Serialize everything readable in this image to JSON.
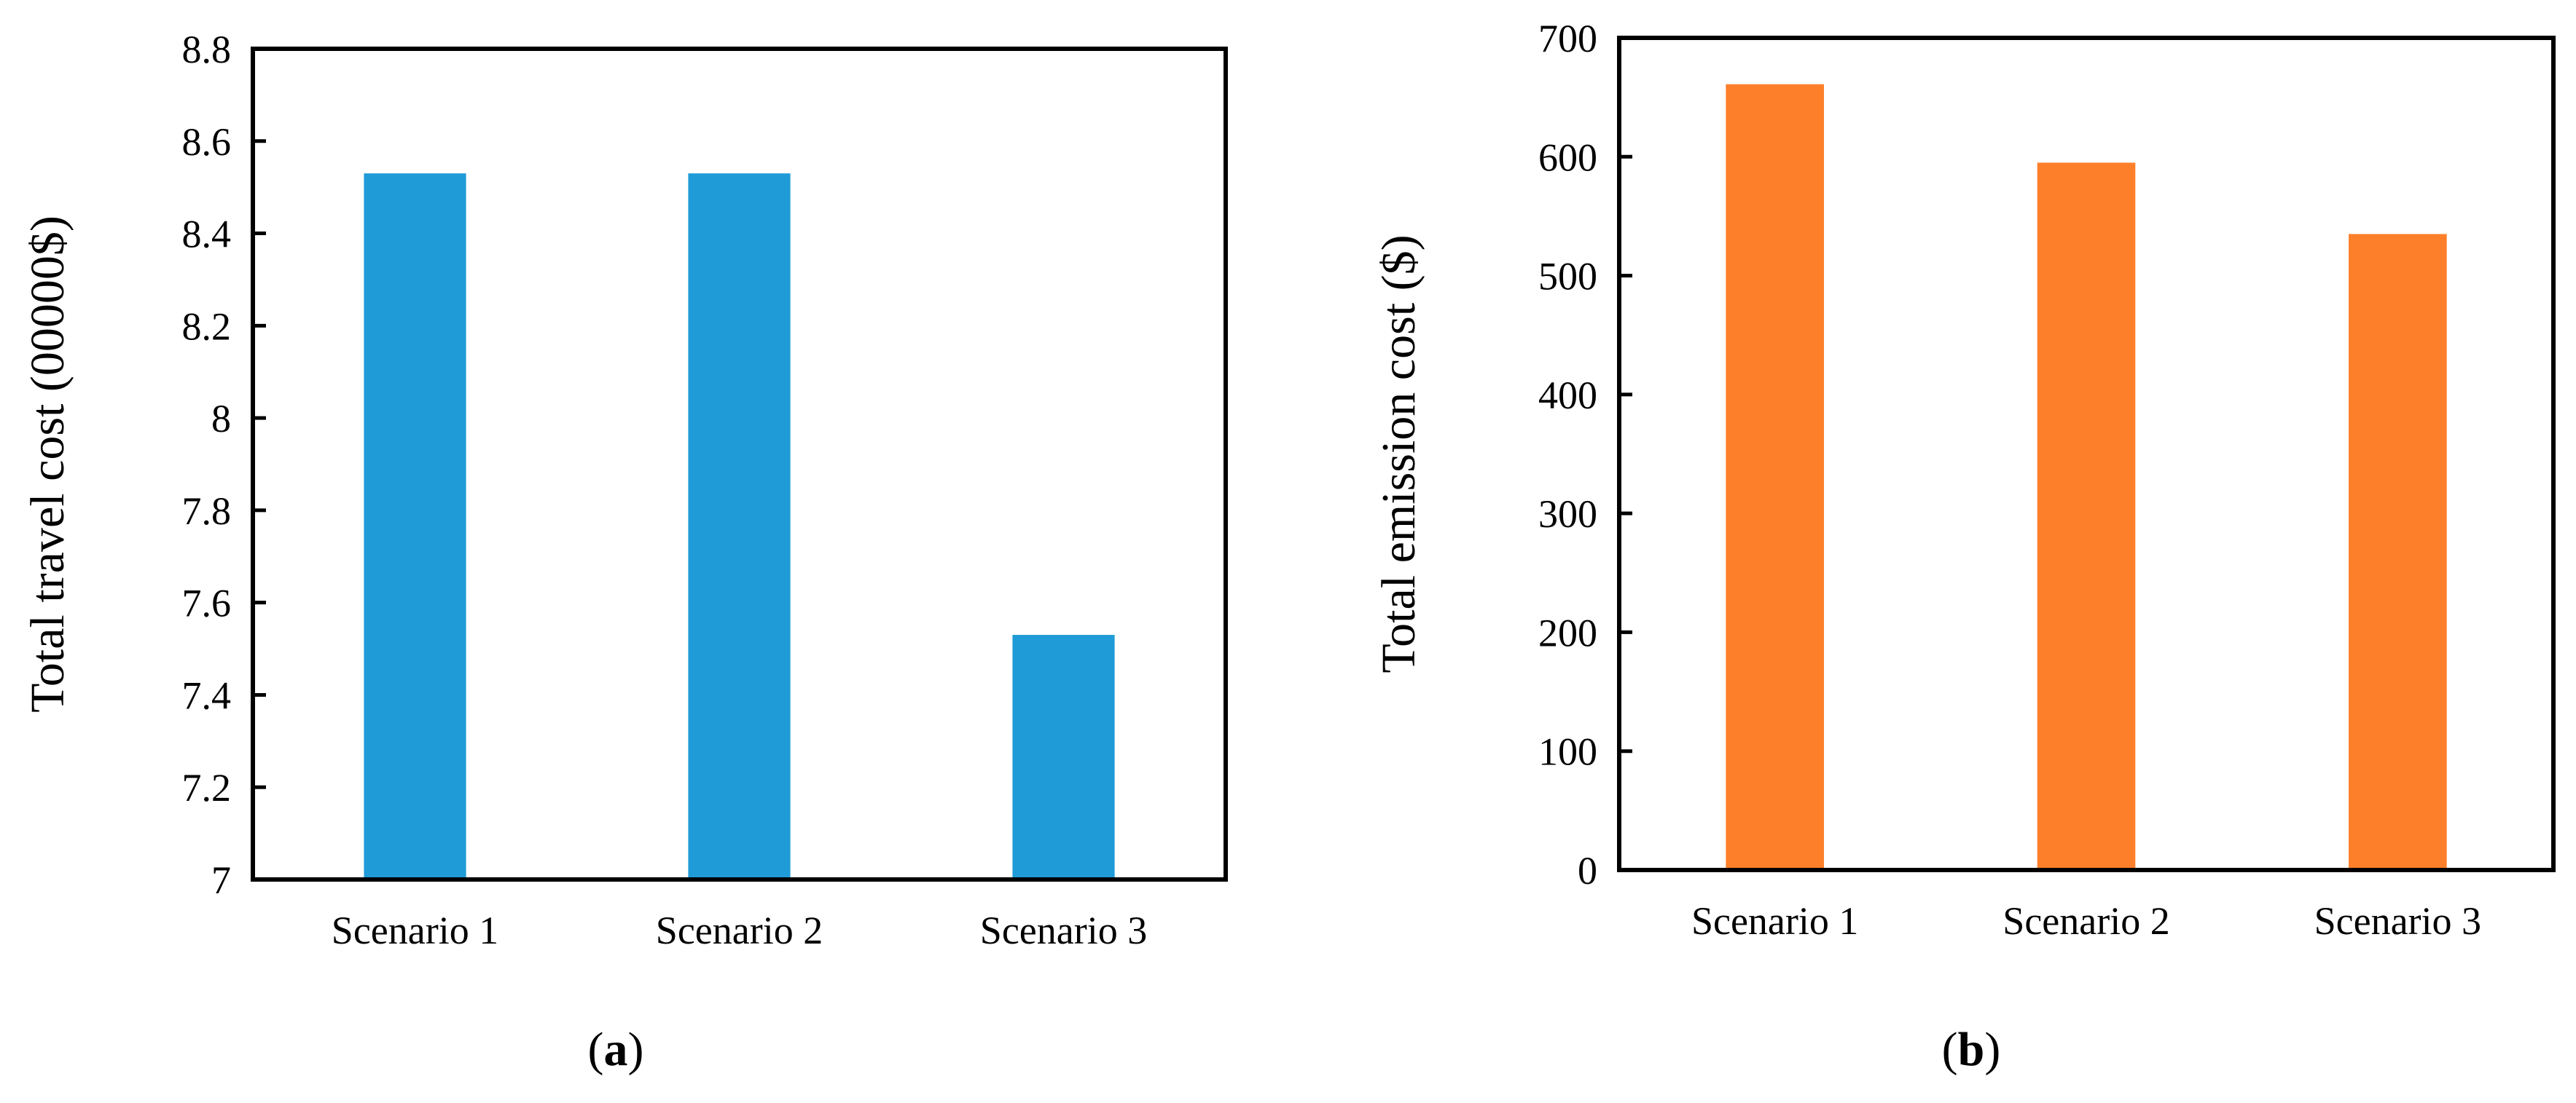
{
  "chart_data": [
    {
      "panel": "a",
      "caption_letter": "a",
      "type": "bar",
      "title": "",
      "xlabel": "",
      "ylabel": "Total travel cost (00000$)",
      "categories": [
        "Scenario 1",
        "Scenario 2",
        "Scenario 3"
      ],
      "values": [
        8.53,
        8.53,
        7.53
      ],
      "ylim": [
        7,
        8.8
      ],
      "yticks": [
        7,
        7.2,
        7.4,
        7.6,
        7.8,
        8,
        8.2,
        8.4,
        8.6,
        8.8
      ],
      "ytick_labels": [
        "7",
        "7.2",
        "7.4",
        "7.6",
        "7.8",
        "8",
        "8.2",
        "8.4",
        "8.6",
        "8.8"
      ],
      "color": "#1f9bd7",
      "grid": false
    },
    {
      "panel": "b",
      "caption_letter": "b",
      "type": "bar",
      "title": "",
      "xlabel": "",
      "ylabel": "Total emission cost ($)",
      "categories": [
        "Scenario 1",
        "Scenario 2",
        "Scenario 3"
      ],
      "values": [
        661,
        595,
        535
      ],
      "ylim": [
        0,
        700
      ],
      "yticks": [
        0,
        100,
        200,
        300,
        400,
        500,
        600,
        700
      ],
      "ytick_labels": [
        "0",
        "100",
        "200",
        "300",
        "400",
        "500",
        "600",
        "700"
      ],
      "color": "#fe7f2a",
      "grid": false
    }
  ]
}
